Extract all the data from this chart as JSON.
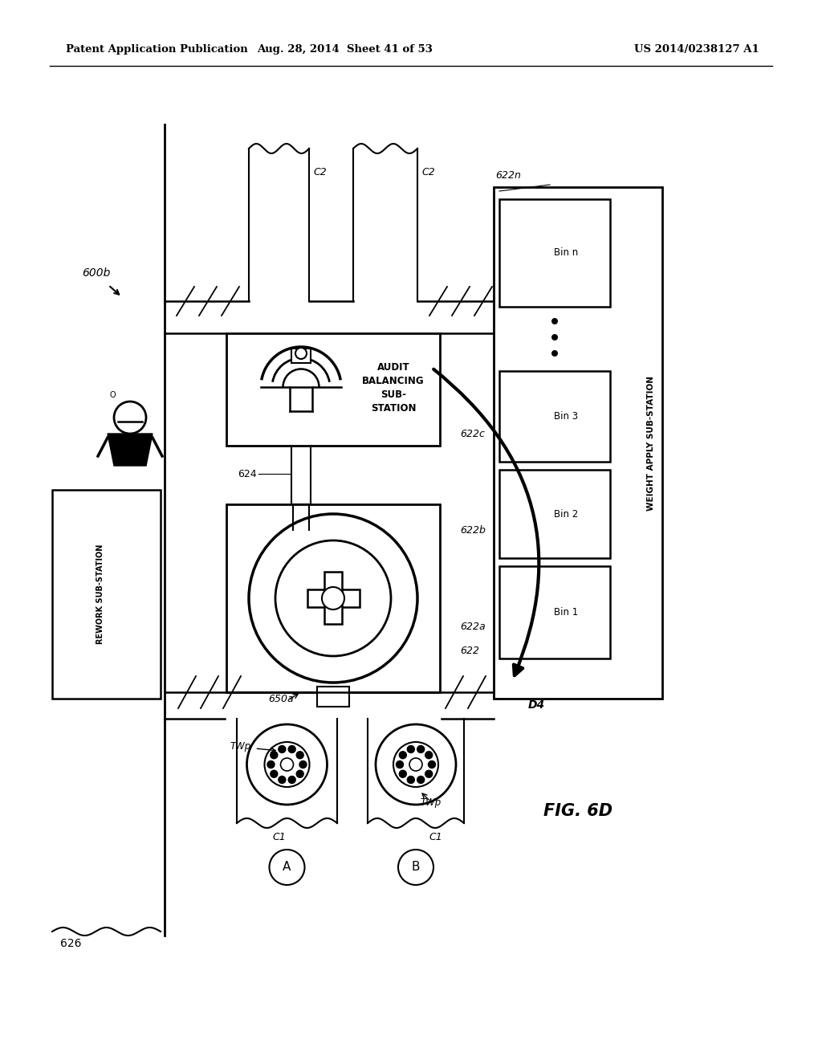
{
  "bg_color": "#ffffff",
  "header_text1": "Patent Application Publication",
  "header_text2": "Aug. 28, 2014  Sheet 41 of 53",
  "header_text3": "US 2014/0238127 A1",
  "fig_label": "FIG. 6D",
  "label_600b": "600b",
  "label_624": "624",
  "label_626": "626",
  "label_622": "622",
  "label_622a": "622a",
  "label_622b": "622b",
  "label_622c": "622c",
  "label_622n": "622n",
  "label_650a": "650a",
  "label_D4": "D4",
  "label_C1_1": "C1",
  "label_C1_2": "C1",
  "label_C2_1": "C2",
  "label_C2_2": "C2",
  "label_A": "A",
  "label_B": "B",
  "label_audit": "AUDIT\nBALANCING\nSUB-\nSTATION",
  "label_rework": "REWORK SUB-STATION",
  "label_weight_apply": "WEIGHT APPLY SUB-STATION",
  "label_bin1": "Bin 1",
  "label_bin2": "Bin 2",
  "label_bin3": "Bin 3",
  "label_binn": "Bin n",
  "label_TWp1": "TWp",
  "label_TWp2": "TWp"
}
